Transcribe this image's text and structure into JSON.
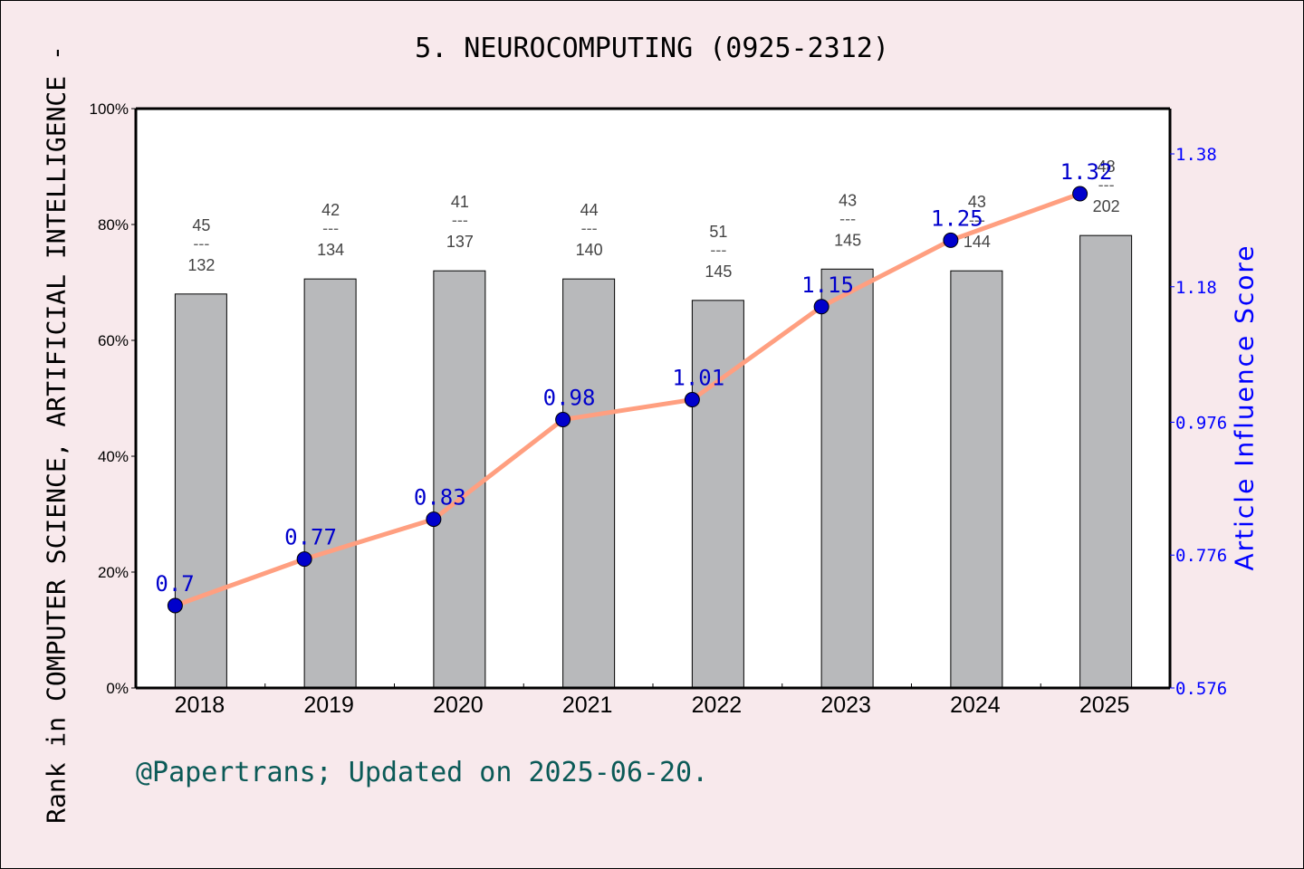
{
  "title": "5. NEUROCOMPUTING (0925-2312)",
  "left_axis_label": "Rank in COMPUTER SCIENCE, ARTIFICIAL INTELLIGENCE -",
  "right_axis_label": "Article Influence Score",
  "footer": "@Papertrans; Updated on 2025-06-20.",
  "colors": {
    "background": "#f8e9ec",
    "plot_bg": "#ffffff",
    "bar": "#b8b9bb",
    "line": "#ff9f80",
    "marker": "#0000cc",
    "right_axis": "#0000ff",
    "footer": "#0b5a57",
    "rank_label": "#444444"
  },
  "chart_data": {
    "type": "bar+line",
    "title": "5. NEUROCOMPUTING (0925-2312)",
    "categories": [
      "2018",
      "2019",
      "2020",
      "2021",
      "2022",
      "2023",
      "2024",
      "2025"
    ],
    "left_axis": {
      "label": "Rank in COMPUTER SCIENCE, ARTIFICIAL INTELLIGENCE -",
      "ticks": [
        "0%",
        "20%",
        "40%",
        "60%",
        "80%",
        "100%"
      ],
      "range": [
        0,
        100
      ]
    },
    "right_axis": {
      "label": "Article Influence Score",
      "ticks": [
        "0.576",
        "0.776",
        "0.976",
        "1.18",
        "1.38"
      ],
      "range": [
        0.576,
        1.38
      ]
    },
    "series": [
      {
        "name": "Rank percentile",
        "type": "bar",
        "axis": "left",
        "values": [
          68.0,
          70.6,
          72.0,
          70.6,
          66.9,
          72.3,
          72.0,
          78.1
        ],
        "labels": [
          {
            "rank": "45",
            "total": "132"
          },
          {
            "rank": "42",
            "total": "134"
          },
          {
            "rank": "41",
            "total": "137"
          },
          {
            "rank": "44",
            "total": "140"
          },
          {
            "rank": "51",
            "total": "145"
          },
          {
            "rank": "43",
            "total": "145"
          },
          {
            "rank": "43",
            "total": "144"
          },
          {
            "rank": "48",
            "total": "202"
          }
        ]
      },
      {
        "name": "Article Influence Score",
        "type": "line",
        "axis": "right",
        "values": [
          0.7,
          0.77,
          0.83,
          0.98,
          1.01,
          1.15,
          1.25,
          1.32
        ],
        "value_labels": [
          "0.7",
          "0.77",
          "0.83",
          "0.98",
          "1.01",
          "1.15",
          "1.25",
          "1.32"
        ]
      }
    ],
    "grid": false,
    "legend": "none"
  }
}
